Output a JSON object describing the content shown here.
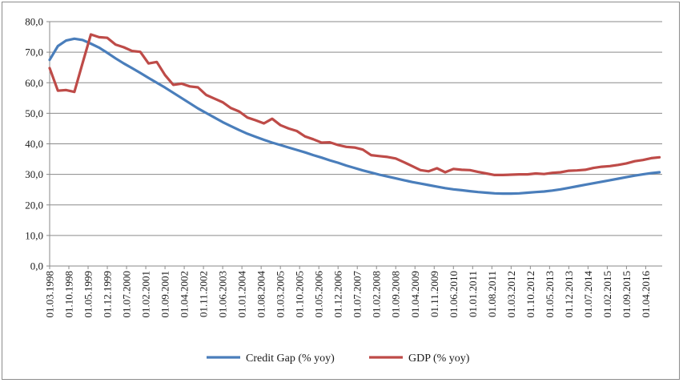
{
  "chart_data": {
    "type": "line",
    "title": "",
    "xlabel": "",
    "ylabel": "",
    "ylim": [
      0,
      80
    ],
    "y_ticks": [
      "0,0",
      "10,0",
      "20,0",
      "30,0",
      "40,0",
      "50,0",
      "60,0",
      "70,0",
      "80,0"
    ],
    "x_ticks": [
      "01.03.1998",
      "01.10.1998",
      "01.05.1999",
      "01.12.1999",
      "01.07.2000",
      "01.02.2001",
      "01.09.2001",
      "01.04.2002",
      "01.11.2002",
      "01.06.2003",
      "01.01.2004",
      "01.08.2004",
      "01.03.2005",
      "01.10.2005",
      "01.05.2006",
      "01.12.2006",
      "01.07.2007",
      "01.02.2008",
      "01.09.2008",
      "01.04.2009",
      "01.11.2009",
      "01.06.2010",
      "01.01.2011",
      "01.08.2011",
      "01.03.2012",
      "01.10.2012",
      "01.05.2013",
      "01.12.2013",
      "01.07.2014",
      "01.02.2015",
      "01.09.2015",
      "01.04.2016"
    ],
    "grid": "horizontal",
    "legend_position": "bottom",
    "series": [
      {
        "name": "Credit Gap (% yoy)",
        "color": "#4a7ebb",
        "points": [
          [
            "1998-03",
            67.5
          ],
          [
            "1998-06",
            72.0
          ],
          [
            "1998-09",
            73.8
          ],
          [
            "1998-12",
            74.4
          ],
          [
            "1999-03",
            74.0
          ],
          [
            "1999-06",
            72.8
          ],
          [
            "1999-09",
            71.5
          ],
          [
            "1999-12",
            69.8
          ],
          [
            "2000-03",
            68.0
          ],
          [
            "2000-06",
            66.3
          ],
          [
            "2000-09",
            64.8
          ],
          [
            "2000-12",
            63.2
          ],
          [
            "2001-03",
            61.6
          ],
          [
            "2001-06",
            60.0
          ],
          [
            "2001-09",
            58.4
          ],
          [
            "2001-12",
            56.7
          ],
          [
            "2002-03",
            55.0
          ],
          [
            "2002-06",
            53.3
          ],
          [
            "2002-09",
            51.6
          ],
          [
            "2002-12",
            50.1
          ],
          [
            "2003-03",
            48.6
          ],
          [
            "2003-06",
            47.1
          ],
          [
            "2003-09",
            45.8
          ],
          [
            "2003-12",
            44.5
          ],
          [
            "2004-03",
            43.3
          ],
          [
            "2004-06",
            42.3
          ],
          [
            "2004-09",
            41.3
          ],
          [
            "2004-12",
            40.4
          ],
          [
            "2005-03",
            39.6
          ],
          [
            "2005-06",
            38.8
          ],
          [
            "2005-09",
            38.0
          ],
          [
            "2005-12",
            37.2
          ],
          [
            "2006-03",
            36.3
          ],
          [
            "2006-06",
            35.5
          ],
          [
            "2006-09",
            34.6
          ],
          [
            "2006-12",
            33.8
          ],
          [
            "2007-03",
            32.9
          ],
          [
            "2007-06",
            32.1
          ],
          [
            "2007-09",
            31.3
          ],
          [
            "2007-12",
            30.6
          ],
          [
            "2008-03",
            29.9
          ],
          [
            "2008-06",
            29.3
          ],
          [
            "2008-09",
            28.7
          ],
          [
            "2008-12",
            28.1
          ],
          [
            "2009-03",
            27.5
          ],
          [
            "2009-06",
            27.0
          ],
          [
            "2009-09",
            26.5
          ],
          [
            "2009-12",
            26.0
          ],
          [
            "2010-03",
            25.5
          ],
          [
            "2010-06",
            25.1
          ],
          [
            "2010-09",
            24.8
          ],
          [
            "2010-12",
            24.5
          ],
          [
            "2011-03",
            24.2
          ],
          [
            "2011-06",
            24.0
          ],
          [
            "2011-09",
            23.8
          ],
          [
            "2011-12",
            23.7
          ],
          [
            "2012-03",
            23.7
          ],
          [
            "2012-06",
            23.8
          ],
          [
            "2012-09",
            24.0
          ],
          [
            "2012-12",
            24.2
          ],
          [
            "2013-03",
            24.4
          ],
          [
            "2013-06",
            24.7
          ],
          [
            "2013-09",
            25.1
          ],
          [
            "2013-12",
            25.6
          ],
          [
            "2014-03",
            26.1
          ],
          [
            "2014-06",
            26.6
          ],
          [
            "2014-09",
            27.1
          ],
          [
            "2014-12",
            27.6
          ],
          [
            "2015-03",
            28.1
          ],
          [
            "2015-06",
            28.6
          ],
          [
            "2015-09",
            29.1
          ],
          [
            "2015-12",
            29.6
          ],
          [
            "2016-03",
            30.0
          ],
          [
            "2016-06",
            30.4
          ],
          [
            "2016-09",
            30.7
          ]
        ]
      },
      {
        "name": "GDP (% yoy)",
        "color": "#be4b48",
        "points": [
          [
            "1998-03",
            64.8
          ],
          [
            "1998-06",
            57.4
          ],
          [
            "1998-09",
            57.6
          ],
          [
            "1998-12",
            57.0
          ],
          [
            "1999-03",
            66.5
          ],
          [
            "1999-06",
            75.8
          ],
          [
            "1999-09",
            74.9
          ],
          [
            "1999-12",
            74.7
          ],
          [
            "2000-03",
            72.5
          ],
          [
            "2000-06",
            71.6
          ],
          [
            "2000-09",
            70.4
          ],
          [
            "2000-12",
            70.1
          ],
          [
            "2001-03",
            66.3
          ],
          [
            "2001-06",
            66.8
          ],
          [
            "2001-09",
            62.5
          ],
          [
            "2001-12",
            59.3
          ],
          [
            "2002-03",
            59.7
          ],
          [
            "2002-06",
            58.8
          ],
          [
            "2002-09",
            58.5
          ],
          [
            "2002-12",
            56.0
          ],
          [
            "2003-03",
            54.8
          ],
          [
            "2003-06",
            53.6
          ],
          [
            "2003-09",
            51.7
          ],
          [
            "2003-12",
            50.6
          ],
          [
            "2004-03",
            48.6
          ],
          [
            "2004-06",
            47.7
          ],
          [
            "2004-09",
            46.7
          ],
          [
            "2004-12",
            48.2
          ],
          [
            "2005-03",
            46.1
          ],
          [
            "2005-06",
            45.0
          ],
          [
            "2005-09",
            44.2
          ],
          [
            "2005-12",
            42.4
          ],
          [
            "2006-03",
            41.5
          ],
          [
            "2006-06",
            40.4
          ],
          [
            "2006-09",
            40.5
          ],
          [
            "2006-12",
            39.6
          ],
          [
            "2007-03",
            39.0
          ],
          [
            "2007-06",
            38.8
          ],
          [
            "2007-09",
            38.1
          ],
          [
            "2007-12",
            36.3
          ],
          [
            "2008-03",
            36.0
          ],
          [
            "2008-06",
            35.7
          ],
          [
            "2008-09",
            35.2
          ],
          [
            "2008-12",
            34.0
          ],
          [
            "2009-03",
            32.7
          ],
          [
            "2009-06",
            31.4
          ],
          [
            "2009-09",
            31.0
          ],
          [
            "2009-12",
            32.0
          ],
          [
            "2010-03",
            30.7
          ],
          [
            "2010-06",
            31.8
          ],
          [
            "2010-09",
            31.5
          ],
          [
            "2010-12",
            31.4
          ],
          [
            "2011-03",
            30.8
          ],
          [
            "2011-06",
            30.3
          ],
          [
            "2011-09",
            29.8
          ],
          [
            "2011-12",
            29.8
          ],
          [
            "2012-03",
            29.9
          ],
          [
            "2012-06",
            30.0
          ],
          [
            "2012-09",
            30.0
          ],
          [
            "2012-12",
            30.3
          ],
          [
            "2013-03",
            30.1
          ],
          [
            "2013-06",
            30.5
          ],
          [
            "2013-09",
            30.7
          ],
          [
            "2013-12",
            31.2
          ],
          [
            "2014-03",
            31.3
          ],
          [
            "2014-06",
            31.5
          ],
          [
            "2014-09",
            32.1
          ],
          [
            "2014-12",
            32.5
          ],
          [
            "2015-03",
            32.7
          ],
          [
            "2015-06",
            33.1
          ],
          [
            "2015-09",
            33.6
          ],
          [
            "2015-12",
            34.3
          ],
          [
            "2016-03",
            34.7
          ],
          [
            "2016-06",
            35.3
          ],
          [
            "2016-09",
            35.6
          ]
        ]
      }
    ]
  }
}
